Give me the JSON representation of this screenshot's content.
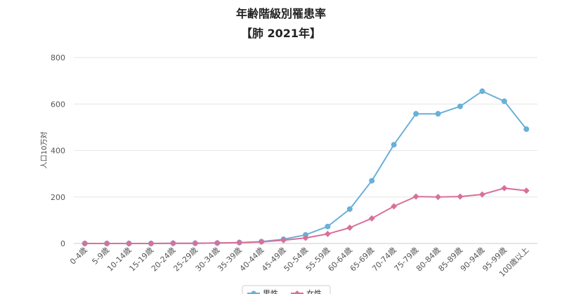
{
  "chart_data": {
    "type": "line",
    "title": "年齢階級別罹患率",
    "subtitle": "【肺 2021年】",
    "ylabel": "人口10万対",
    "xlabel": "",
    "ylim": [
      0,
      800
    ],
    "yticks": [
      0,
      200,
      400,
      600,
      800
    ],
    "grid": true,
    "legend_position": "bottom",
    "categories": [
      "0-4歳",
      "5-9歳",
      "10-14歳",
      "15-19歳",
      "20-24歳",
      "25-29歳",
      "30-34歳",
      "35-39歳",
      "40-44歳",
      "45-49歳",
      "50-54歳",
      "55-59歳",
      "60-64歳",
      "65-69歳",
      "70-74歳",
      "75-79歳",
      "80-84歳",
      "85-89歳",
      "90-94歳",
      "95-99歳",
      "100歳以上"
    ],
    "series": [
      {
        "name": "男性",
        "color": "#6ab0d8",
        "marker": "circle",
        "values": [
          0,
          0,
          0,
          0,
          1,
          1,
          2,
          4,
          8,
          18,
          37,
          73,
          148,
          270,
          425,
          558,
          558,
          590,
          655,
          612,
          492
        ]
      },
      {
        "name": "女性",
        "color": "#d9709a",
        "marker": "diamond",
        "values": [
          0,
          0,
          0,
          0,
          1,
          1,
          2,
          4,
          7,
          14,
          24,
          41,
          68,
          108,
          160,
          202,
          200,
          202,
          211,
          238,
          227
        ]
      }
    ]
  }
}
